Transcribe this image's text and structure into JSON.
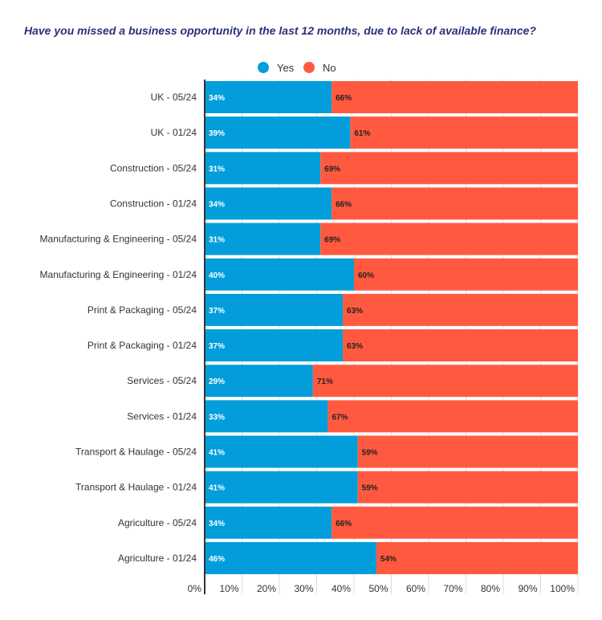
{
  "chart_data": {
    "type": "bar",
    "stacked": true,
    "orientation": "horizontal",
    "title": "Have you missed a business opportunity in the last 12 months, due to lack of available finance?",
    "categories": [
      "UK - 05/24",
      "UK - 01/24",
      "Construction - 05/24",
      "Construction - 01/24",
      "Manufacturing & Engineering - 05/24",
      "Manufacturing & Engineering - 01/24",
      "Print & Packaging - 05/24",
      "Print & Packaging - 01/24",
      "Services - 05/24",
      "Services - 01/24",
      "Transport & Haulage - 05/24",
      "Transport & Haulage - 01/24",
      "Agriculture - 05/24",
      "Agriculture - 01/24"
    ],
    "series": [
      {
        "name": "Yes",
        "color": "#039ddb",
        "values": [
          34,
          39,
          31,
          34,
          31,
          40,
          37,
          37,
          29,
          33,
          41,
          41,
          34,
          46
        ]
      },
      {
        "name": "No",
        "color": "#ff5a40",
        "values": [
          66,
          61,
          69,
          66,
          69,
          60,
          63,
          63,
          71,
          67,
          59,
          59,
          66,
          54
        ]
      }
    ],
    "xlim": [
      0,
      100
    ],
    "xticks": [
      "0%",
      "10%",
      "20%",
      "30%",
      "40%",
      "50%",
      "60%",
      "70%",
      "80%",
      "90%",
      "100%"
    ],
    "legend": "top",
    "grid": true
  }
}
